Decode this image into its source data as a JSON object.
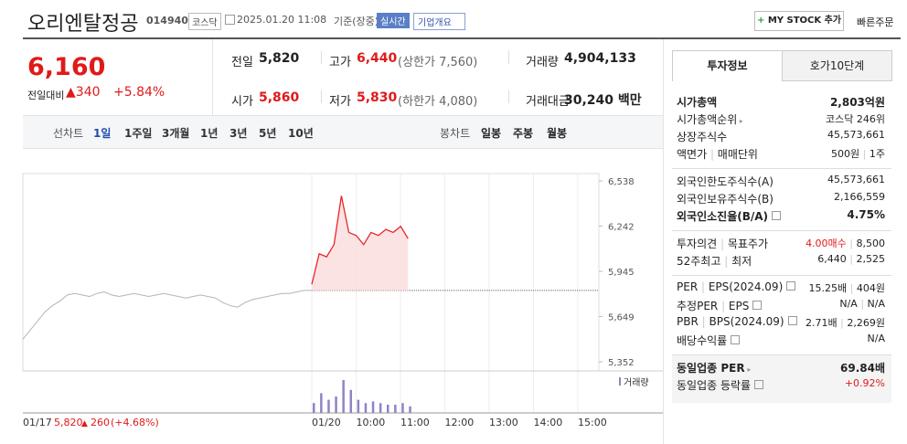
{
  "header": {
    "title": "오리엔탈정공",
    "code": "014940",
    "market": "코스닥",
    "datetime": "2025.01.20 11:08",
    "basis": "기준(장중)",
    "realtime": "실시간",
    "company_menu": "기업개요",
    "my_stock": "MY STOCK 추가",
    "quick_order": "빠른주문"
  },
  "price": {
    "current": "6,160",
    "change_label": "전일대비",
    "change": "340",
    "rate": "+5.84%",
    "color": "#e01a1a"
  },
  "stats": [
    [
      {
        "label": "전일",
        "value": "5,820",
        "color": "#222222"
      },
      {
        "label": "고가",
        "value": "6,440",
        "note": "(상한가 7,560)",
        "color": "#e01a1a"
      },
      {
        "label": "거래량",
        "value": "4,904,133",
        "color": "#222222"
      }
    ],
    [
      {
        "label": "시가",
        "value": "5,860",
        "color": "#e01a1a"
      },
      {
        "label": "저가",
        "value": "5,830",
        "note": "(하한가 4,080)",
        "color": "#e01a1a"
      },
      {
        "label": "거래대금",
        "value": "30,240 백만",
        "color": "#222222"
      }
    ]
  ],
  "chart_tabs": {
    "line_label": "선차트",
    "periods": [
      "1일",
      "1주일",
      "3개월",
      "1년",
      "3년",
      "5년",
      "10년"
    ],
    "candle_label": "봉차트",
    "candles": [
      "일봉",
      "주봉",
      "월봉"
    ]
  },
  "chart_data": {
    "type": "line",
    "ylim": [
      5352,
      6538
    ],
    "yticks": [
      {
        "value": 6538,
        "label": "6,538"
      },
      {
        "value": 6242,
        "label": "6,242"
      },
      {
        "value": 5945,
        "label": "5,945"
      },
      {
        "value": 5649,
        "label": "5,649"
      },
      {
        "value": 5352,
        "label": "5,352"
      }
    ],
    "x_labels": [
      "01/20",
      "10:00",
      "11:00",
      "12:00",
      "13:00",
      "14:00",
      "15:00"
    ],
    "reference": 5820,
    "series": [
      {
        "name": "01/17",
        "color": "#b5b5b5",
        "values": [
          5500,
          5560,
          5620,
          5680,
          5720,
          5750,
          5790,
          5800,
          5790,
          5780,
          5800,
          5810,
          5790,
          5780,
          5790,
          5800,
          5790,
          5780,
          5790,
          5800,
          5790,
          5780,
          5770,
          5780,
          5790,
          5780,
          5770,
          5740,
          5720,
          5710,
          5740,
          5760,
          5770,
          5780,
          5790,
          5800,
          5800,
          5810,
          5820,
          5820
        ]
      },
      {
        "color": "#e8262c",
        "fill": "#fbdcdc",
        "values": [
          5860,
          6060,
          6040,
          6120,
          6440,
          6200,
          6180,
          6120,
          6200,
          6180,
          6220,
          6200,
          6240,
          6160
        ]
      }
    ],
    "volume": {
      "name": "거래량",
      "color": "#8d84c8",
      "values": [
        30,
        60,
        40,
        50,
        100,
        70,
        40,
        30,
        35,
        30,
        25,
        25,
        30,
        20
      ]
    },
    "prev_close": "5,820",
    "prev_change": "260",
    "prev_rate": "(+4.68%)"
  },
  "panel": {
    "tabs": [
      "투자정보",
      "호가10단계"
    ],
    "groups": [
      [
        {
          "label": [
            "시가총액"
          ],
          "value": [
            "2,803억원"
          ],
          "bold": true
        },
        {
          "label": [
            "시가총액순위"
          ],
          "icon": "arrow",
          "value": [
            "코스닥 246위"
          ]
        },
        {
          "label": [
            "상장주식수"
          ],
          "value": [
            "45,573,661"
          ]
        },
        {
          "label": [
            "액면가",
            "매매단위"
          ],
          "value": [
            "500원",
            "1주"
          ]
        }
      ],
      [
        {
          "label": [
            "외국인한도주식수(A)"
          ],
          "value": [
            "45,573,661"
          ]
        },
        {
          "label": [
            "외국인보유주식수(B)"
          ],
          "value": [
            "2,166,559"
          ]
        },
        {
          "label": [
            "외국인소진율(B/A)"
          ],
          "icon": "help",
          "value": [
            "4.75%"
          ],
          "bold": true
        }
      ],
      [
        {
          "label": [
            "투자의견",
            "목표주가"
          ],
          "value": [
            "4.00매수",
            "8,500"
          ],
          "value_color": "#e01a1a"
        },
        {
          "label": [
            "52주최고",
            "최저"
          ],
          "value": [
            "6,440",
            "2,525"
          ]
        }
      ],
      [
        {
          "label": [
            "PER",
            "EPS(2024.09)"
          ],
          "icon": "help",
          "value": [
            "15.25배",
            "404원"
          ]
        },
        {
          "label": [
            "추정PER",
            "EPS"
          ],
          "icon": "help",
          "value": [
            "N/A",
            "N/A"
          ]
        },
        {
          "label": [
            "PBR",
            "BPS(2024.09)"
          ],
          "icon": "help",
          "value": [
            "2.71배",
            "2,269원"
          ]
        },
        {
          "label": [
            "배당수익률"
          ],
          "icon": "help",
          "value": [
            "N/A"
          ]
        }
      ],
      [
        {
          "label": [
            "동일업종 PER"
          ],
          "icon": "arrow",
          "value": [
            "69.84배"
          ],
          "bold": true
        },
        {
          "label": [
            "동일업종 등락률"
          ],
          "icon": "help",
          "value": [
            "+0.92%"
          ],
          "value_color": "#e01a1a"
        }
      ]
    ]
  }
}
